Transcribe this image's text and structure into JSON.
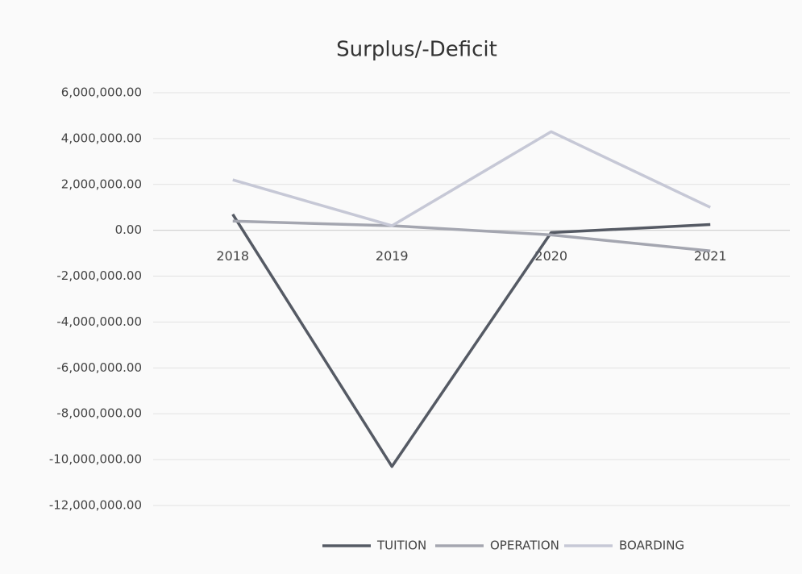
{
  "chart_data": {
    "type": "line",
    "title": "Surplus/-Deficit",
    "categories": [
      "2018",
      "2019",
      "2020",
      "2021"
    ],
    "series": [
      {
        "name": "TUITION",
        "color": "#555a64",
        "values": [
          700000,
          -10300000,
          -100000,
          250000
        ]
      },
      {
        "name": "OPERATION",
        "color": "#a4a6b0",
        "values": [
          400000,
          200000,
          -200000,
          -900000
        ]
      },
      {
        "name": "BOARDING",
        "color": "#c6c8d6",
        "values": [
          2200000,
          200000,
          4300000,
          1000000
        ]
      }
    ],
    "ylim": [
      -12000000,
      6000000
    ],
    "yticks": [
      {
        "value": -12000000,
        "label": "-12,000,000.00"
      },
      {
        "value": -10000000,
        "label": "-10,000,000.00"
      },
      {
        "value": -8000000,
        "label": "-8,000,000.00"
      },
      {
        "value": -6000000,
        "label": "-6,000,000.00"
      },
      {
        "value": -4000000,
        "label": "-4,000,000.00"
      },
      {
        "value": -2000000,
        "label": "-2,000,000.00"
      },
      {
        "value": 0,
        "label": "0.00"
      },
      {
        "value": 2000000,
        "label": "2,000,000.00"
      },
      {
        "value": 4000000,
        "label": "4,000,000.00"
      },
      {
        "value": 6000000,
        "label": "6,000,000.00"
      }
    ],
    "grid": true,
    "legend": "bottom"
  }
}
